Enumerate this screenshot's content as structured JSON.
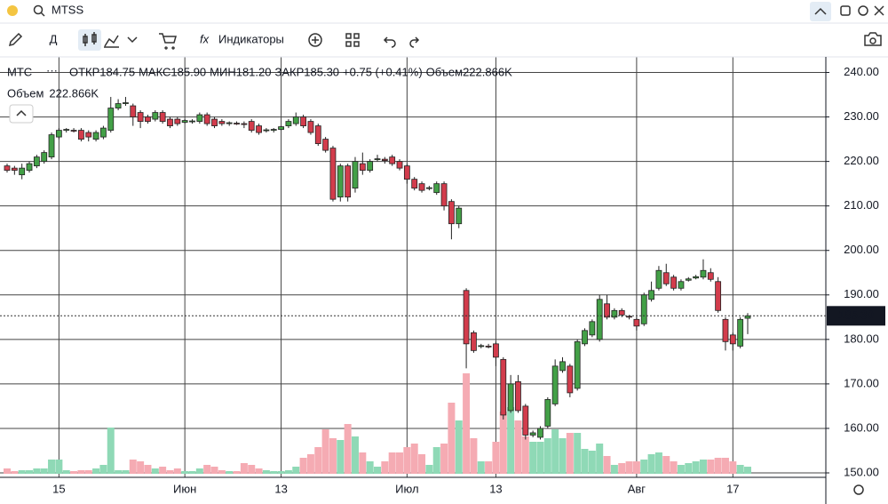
{
  "toolbar": {
    "search": "MTSS",
    "interval": "Д",
    "indicators": "Индикаторы"
  },
  "info": {
    "symbol": "МТС",
    "items": [
      {
        "label": "ОТКР",
        "value": "184.75"
      },
      {
        "label": "МАКС",
        "value": "185.90"
      },
      {
        "label": "МИН",
        "value": "181.20"
      },
      {
        "label": "ЗАКР",
        "value": "185.30"
      }
    ],
    "change": "+0.75 (+0.41%)",
    "volume_label": "Объем",
    "volume_value": "222.866K"
  },
  "chart_data": {
    "type": "candlestick",
    "categories": [
      null,
      null,
      null,
      null,
      null,
      null,
      null,
      "15",
      null,
      null,
      null,
      null,
      null,
      null,
      null,
      null,
      null,
      null,
      null,
      null,
      null,
      null,
      null,
      null,
      "Июн",
      null,
      null,
      null,
      null,
      null,
      null,
      null,
      null,
      null,
      null,
      null,
      null,
      "13",
      null,
      null,
      null,
      null,
      null,
      null,
      null,
      null,
      null,
      null,
      null,
      null,
      null,
      null,
      null,
      null,
      "Июл",
      null,
      null,
      null,
      null,
      null,
      null,
      null,
      null,
      null,
      null,
      null,
      "13",
      null,
      null,
      null,
      null,
      null,
      null,
      null,
      null,
      null,
      null,
      null,
      null,
      null,
      null,
      null,
      null,
      null,
      null,
      "Авг",
      null,
      null,
      null,
      null,
      null,
      null,
      null,
      null,
      null,
      null,
      null,
      null,
      "17",
      null,
      null
    ],
    "open": [
      219,
      218.5,
      217,
      218,
      219,
      220,
      221,
      225.5,
      227,
      227,
      227,
      226.5,
      225,
      225.5,
      227,
      232,
      233,
      232.5,
      231,
      230,
      229.5,
      231,
      229.5,
      229.5,
      228.8,
      229,
      229,
      230.5,
      229.5,
      229,
      228.5,
      228.6,
      228.5,
      229,
      228,
      227,
      227,
      227.2,
      228,
      228.5,
      230,
      229,
      228,
      225,
      223,
      212,
      219,
      214,
      219.5,
      218,
      220.5,
      220.5,
      221,
      220,
      219,
      216,
      215,
      214,
      213,
      215,
      211,
      206,
      191,
      181.5,
      178.5,
      178.5,
      179,
      175.5,
      164,
      170.5,
      165,
      158.5,
      158,
      160.5,
      165.5,
      173,
      174,
      169,
      179,
      181,
      180,
      188,
      185,
      186.5,
      185.2,
      184.5,
      183.5,
      189,
      191.5,
      195,
      194,
      191.5,
      193.3,
      193.8,
      194,
      195,
      193,
      184.5,
      181,
      178.5,
      184.75
    ],
    "high": [
      219.5,
      219,
      219.5,
      220,
      221.5,
      222.5,
      226.5,
      227.5,
      227.5,
      227.5,
      227.5,
      227,
      227,
      228,
      234.5,
      234,
      234.5,
      233,
      231.5,
      230.5,
      231.5,
      231.5,
      230,
      230,
      229.5,
      229.5,
      231,
      231,
      230,
      229.5,
      229,
      229,
      229,
      229.5,
      228.5,
      227.5,
      227.5,
      228,
      229.5,
      231,
      230.5,
      229.5,
      228.5,
      225.5,
      223.5,
      219.5,
      219.5,
      221,
      222,
      220.5,
      221.5,
      221,
      221.5,
      220.5,
      219.5,
      216.5,
      215.5,
      214.5,
      215.5,
      215.5,
      211.5,
      210,
      191.5,
      182,
      179,
      179,
      179.5,
      176,
      172,
      172,
      165.5,
      159.5,
      160.5,
      167,
      175.5,
      176,
      174.5,
      180,
      182.5,
      184.5,
      190,
      190,
      187,
      187,
      185.5,
      185,
      190.5,
      193,
      196.5,
      197,
      194.5,
      193.5,
      194,
      194.5,
      198,
      196,
      194,
      185,
      181.5,
      185,
      185.9
    ],
    "low": [
      217.5,
      217,
      216,
      217.5,
      218.5,
      219.5,
      220.5,
      225,
      226.5,
      226.5,
      224.5,
      224.5,
      224.5,
      225,
      226.5,
      231.5,
      232.5,
      228,
      227.5,
      228.5,
      229,
      228.5,
      227.5,
      228,
      228.5,
      228.5,
      228.5,
      228,
      227.5,
      228,
      228,
      228.2,
      227.5,
      226.5,
      226,
      226.5,
      226.5,
      227,
      227.5,
      228,
      227.5,
      226,
      223.5,
      222,
      211,
      211,
      211,
      213,
      217,
      217.5,
      220,
      219.5,
      219,
      218,
      215,
      213.5,
      213,
      213.5,
      212.5,
      209,
      202.5,
      205,
      173.5,
      177,
      178,
      178,
      174,
      162,
      163.5,
      163.5,
      157.5,
      158,
      157.5,
      160,
      165,
      172.5,
      167,
      168.5,
      178.5,
      180.5,
      179.5,
      184.5,
      184.5,
      185,
      184.5,
      182,
      183,
      188.5,
      191,
      192,
      191,
      191,
      193,
      193.5,
      193.5,
      193,
      186,
      177.5,
      177.5,
      178,
      181.2
    ],
    "close": [
      218,
      218,
      218.5,
      219.5,
      221,
      222,
      226,
      227,
      227.2,
      226.8,
      225,
      225.5,
      226.5,
      227.5,
      232,
      233,
      233.2,
      230,
      229,
      229,
      231,
      229,
      228,
      228.5,
      229.2,
      229.1,
      230.5,
      228.5,
      228,
      228.5,
      228.7,
      228.4,
      228.3,
      227,
      226.5,
      227.1,
      227.2,
      227.8,
      229,
      230,
      228,
      226.5,
      224,
      222.5,
      211.5,
      219,
      212,
      220,
      218,
      220,
      220.6,
      220.2,
      219.5,
      218.5,
      216,
      214,
      213.5,
      214.1,
      215,
      210,
      206,
      209.5,
      179,
      177.5,
      178.6,
      178.4,
      176,
      163,
      170,
      164,
      158.5,
      159,
      160,
      166.5,
      174,
      175,
      168,
      179.5,
      182,
      184,
      189,
      185,
      186.5,
      185.5,
      185,
      183,
      190,
      191,
      195.5,
      192.5,
      191.5,
      193,
      193.6,
      194.1,
      195.5,
      193.5,
      186.5,
      179.5,
      179,
      184.5,
      185.3
    ],
    "volume": [
      168,
      84,
      112,
      112,
      168,
      168,
      448,
      448,
      112,
      84,
      112,
      112,
      168,
      280,
      1456,
      112,
      112,
      448,
      392,
      280,
      168,
      224,
      112,
      168,
      84,
      84,
      168,
      280,
      224,
      112,
      84,
      84,
      336,
      280,
      168,
      112,
      84,
      84,
      112,
      224,
      504,
      616,
      840,
      1400,
      1120,
      1064,
      1568,
      1176,
      672,
      392,
      224,
      392,
      672,
      672,
      840,
      952,
      616,
      280,
      840,
      952,
      2240,
      1680,
      3164,
      1120,
      392,
      392,
      1008,
      1960,
      2100,
      1680,
      1176,
      1008,
      1008,
      1120,
      1400,
      1120,
      1288,
      1288,
      784,
      728,
      952,
      560,
      280,
      336,
      392,
      392,
      448,
      616,
      672,
      560,
      392,
      280,
      336,
      392,
      448,
      448,
      504,
      504,
      392,
      280,
      222.866
    ],
    "ylim": [
      149,
      243.5
    ],
    "yticks": [
      {
        "value": 150,
        "label": "150.00"
      },
      {
        "value": 160,
        "label": "160.00"
      },
      {
        "value": 170,
        "label": "170.00"
      },
      {
        "value": 180,
        "label": "180.00"
      },
      {
        "value": 190,
        "label": "190.00"
      },
      {
        "value": 200,
        "label": "200.00"
      },
      {
        "value": 210,
        "label": "210.00"
      },
      {
        "value": 220,
        "label": "220.00"
      },
      {
        "value": 230,
        "label": "230.00"
      },
      {
        "value": 240,
        "label": "240.00"
      }
    ],
    "last_price": {
      "value": 185.3,
      "label": "185.30"
    },
    "grid": true,
    "up_color": "#43a047",
    "down_color": "#d23c4c",
    "volume_up_color": "#8fd9b6",
    "volume_down_color": "#f5abb3"
  }
}
